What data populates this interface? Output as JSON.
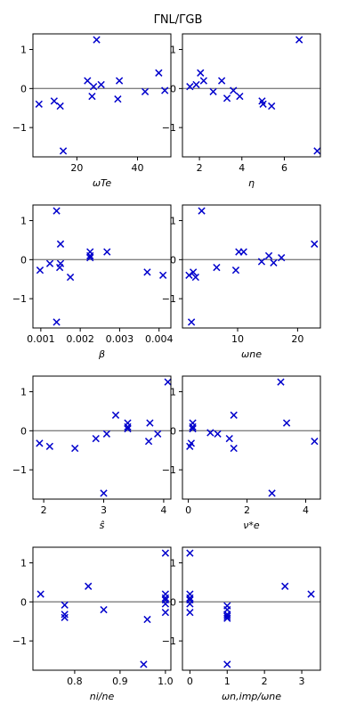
{
  "figure": {
    "title": "ΓNL/ΓGB"
  },
  "colors": {
    "marker": "#0000cc",
    "zero_line": "#808080",
    "axes": "#000000"
  },
  "chart_data": [
    {
      "type": "scatter",
      "xlabel": "ωTe",
      "xlim": [
        5.5,
        51
      ],
      "ylim": [
        -1.75,
        1.4
      ],
      "xticks": [
        20,
        40
      ],
      "xtick_labels": [
        "20",
        "40"
      ],
      "yticks": [
        -1,
        0,
        1
      ],
      "ytick_labels": [
        "−1",
        "0",
        "1"
      ],
      "zero_line": true,
      "points": [
        {
          "x": 7.5,
          "y": -0.4
        },
        {
          "x": 12.5,
          "y": -0.32
        },
        {
          "x": 14.5,
          "y": -0.45
        },
        {
          "x": 15.5,
          "y": -1.6
        },
        {
          "x": 23.5,
          "y": 0.2
        },
        {
          "x": 25.0,
          "y": -0.2
        },
        {
          "x": 25.5,
          "y": 0.05
        },
        {
          "x": 26.5,
          "y": 1.25
        },
        {
          "x": 28.0,
          "y": 0.1
        },
        {
          "x": 33.5,
          "y": -0.27
        },
        {
          "x": 34.0,
          "y": 0.2
        },
        {
          "x": 42.5,
          "y": -0.08
        },
        {
          "x": 47.0,
          "y": 0.4
        },
        {
          "x": 49.0,
          "y": -0.05
        }
      ]
    },
    {
      "type": "scatter",
      "xlabel": "η",
      "xlim": [
        1.2,
        7.7
      ],
      "ylim": [
        -1.75,
        1.4
      ],
      "xticks": [
        2,
        4,
        6
      ],
      "xtick_labels": [
        "2",
        "4",
        "6"
      ],
      "yticks": [
        -1,
        0,
        1
      ],
      "ytick_labels": [
        "−1",
        "0",
        "1"
      ],
      "zero_line": true,
      "points": [
        {
          "x": 1.55,
          "y": 0.05
        },
        {
          "x": 1.85,
          "y": 0.1
        },
        {
          "x": 2.05,
          "y": 0.4
        },
        {
          "x": 2.2,
          "y": 0.2
        },
        {
          "x": 2.65,
          "y": -0.08
        },
        {
          "x": 3.05,
          "y": 0.2
        },
        {
          "x": 3.3,
          "y": -0.25
        },
        {
          "x": 3.6,
          "y": -0.05
        },
        {
          "x": 3.9,
          "y": -0.2
        },
        {
          "x": 4.95,
          "y": -0.32
        },
        {
          "x": 5.0,
          "y": -0.4
        },
        {
          "x": 5.4,
          "y": -0.45
        },
        {
          "x": 6.7,
          "y": 1.25
        },
        {
          "x": 7.55,
          "y": -1.6
        }
      ]
    },
    {
      "type": "scatter",
      "xlabel": "β",
      "xlim": [
        0.0008,
        0.0043
      ],
      "ylim": [
        -1.75,
        1.4
      ],
      "xticks": [
        0.001,
        0.002,
        0.003,
        0.004
      ],
      "xtick_labels": [
        "0.001",
        "0.002",
        "0.003",
        "0.004"
      ],
      "yticks": [
        -1,
        0,
        1
      ],
      "ytick_labels": [
        "−1",
        "0",
        "1"
      ],
      "zero_line": true,
      "points": [
        {
          "x": 0.00098,
          "y": -0.27
        },
        {
          "x": 0.00123,
          "y": -0.1
        },
        {
          "x": 0.0014,
          "y": 1.25
        },
        {
          "x": 0.0014,
          "y": -1.6
        },
        {
          "x": 0.00148,
          "y": -0.2
        },
        {
          "x": 0.0015,
          "y": -0.1
        },
        {
          "x": 0.0015,
          "y": 0.4
        },
        {
          "x": 0.00175,
          "y": -0.45
        },
        {
          "x": 0.00225,
          "y": 0.2
        },
        {
          "x": 0.00225,
          "y": 0.05
        },
        {
          "x": 0.00225,
          "y": 0.1
        },
        {
          "x": 0.00268,
          "y": 0.2
        },
        {
          "x": 0.0037,
          "y": -0.32
        },
        {
          "x": 0.0041,
          "y": -0.4
        }
      ]
    },
    {
      "type": "scatter",
      "xlabel": "ωne",
      "xlim": [
        0.8,
        23.8
      ],
      "ylim": [
        -1.75,
        1.4
      ],
      "xticks": [
        10,
        20
      ],
      "xtick_labels": [
        "10",
        "20"
      ],
      "yticks": [
        -1,
        0,
        1
      ],
      "ytick_labels": [
        "−1",
        "0",
        "1"
      ],
      "zero_line": true,
      "points": [
        {
          "x": 1.9,
          "y": -0.4
        },
        {
          "x": 2.3,
          "y": -1.6
        },
        {
          "x": 2.6,
          "y": -0.32
        },
        {
          "x": 3.0,
          "y": -0.45
        },
        {
          "x": 4.0,
          "y": 1.25
        },
        {
          "x": 6.5,
          "y": -0.2
        },
        {
          "x": 9.7,
          "y": -0.27
        },
        {
          "x": 10.2,
          "y": 0.2
        },
        {
          "x": 11.0,
          "y": 0.2
        },
        {
          "x": 14.0,
          "y": -0.05
        },
        {
          "x": 15.2,
          "y": 0.1
        },
        {
          "x": 16.0,
          "y": -0.08
        },
        {
          "x": 17.3,
          "y": 0.05
        },
        {
          "x": 22.8,
          "y": 0.4
        }
      ]
    },
    {
      "type": "scatter",
      "xlabel": "ŝ",
      "xlim": [
        1.82,
        4.12
      ],
      "ylim": [
        -1.75,
        1.4
      ],
      "xticks": [
        2,
        3,
        4
      ],
      "xtick_labels": [
        "2",
        "3",
        "4"
      ],
      "yticks": [
        -1,
        0,
        1
      ],
      "ytick_labels": [
        "−1",
        "0",
        "1"
      ],
      "zero_line": true,
      "points": [
        {
          "x": 1.93,
          "y": -0.32
        },
        {
          "x": 2.1,
          "y": -0.4
        },
        {
          "x": 2.52,
          "y": -0.45
        },
        {
          "x": 2.87,
          "y": -0.2
        },
        {
          "x": 3.0,
          "y": -1.6
        },
        {
          "x": 3.05,
          "y": -0.08
        },
        {
          "x": 3.2,
          "y": 0.4
        },
        {
          "x": 3.4,
          "y": 0.2
        },
        {
          "x": 3.4,
          "y": 0.05
        },
        {
          "x": 3.4,
          "y": 0.1
        },
        {
          "x": 3.75,
          "y": -0.27
        },
        {
          "x": 3.77,
          "y": 0.2
        },
        {
          "x": 3.9,
          "y": -0.08
        },
        {
          "x": 4.07,
          "y": 1.25
        }
      ]
    },
    {
      "type": "scatter",
      "xlabel": "ν*e",
      "xlim": [
        -0.2,
        4.5
      ],
      "ylim": [
        -1.75,
        1.4
      ],
      "xticks": [
        0,
        2,
        4
      ],
      "xtick_labels": [
        "0",
        "2",
        "4"
      ],
      "yticks": [
        -1,
        0,
        1
      ],
      "ytick_labels": [
        "−1",
        "0",
        "1"
      ],
      "zero_line": true,
      "points": [
        {
          "x": 0.05,
          "y": -0.4
        },
        {
          "x": 0.1,
          "y": -0.32
        },
        {
          "x": 0.15,
          "y": 0.2
        },
        {
          "x": 0.15,
          "y": 0.05
        },
        {
          "x": 0.15,
          "y": 0.1
        },
        {
          "x": 0.75,
          "y": -0.05
        },
        {
          "x": 1.0,
          "y": -0.08
        },
        {
          "x": 1.4,
          "y": -0.2
        },
        {
          "x": 1.55,
          "y": 0.4
        },
        {
          "x": 1.55,
          "y": -0.45
        },
        {
          "x": 2.85,
          "y": -1.6
        },
        {
          "x": 3.15,
          "y": 1.25
        },
        {
          "x": 3.35,
          "y": 0.2
        },
        {
          "x": 4.3,
          "y": -0.27
        }
      ]
    },
    {
      "type": "scatter",
      "xlabel": "ni/ne",
      "xlim": [
        0.708,
        1.012
      ],
      "ylim": [
        -1.75,
        1.4
      ],
      "xticks": [
        0.8,
        0.9,
        1.0
      ],
      "xtick_labels": [
        "0.8",
        "0.9",
        "1.0"
      ],
      "yticks": [
        -1,
        0,
        1
      ],
      "ytick_labels": [
        "−1",
        "0",
        "1"
      ],
      "zero_line": true,
      "points": [
        {
          "x": 0.725,
          "y": 0.2
        },
        {
          "x": 0.778,
          "y": -0.08
        },
        {
          "x": 0.778,
          "y": -0.32
        },
        {
          "x": 0.778,
          "y": -0.4
        },
        {
          "x": 0.83,
          "y": 0.4
        },
        {
          "x": 0.864,
          "y": -0.2
        },
        {
          "x": 0.952,
          "y": -1.6
        },
        {
          "x": 0.96,
          "y": -0.45
        },
        {
          "x": 1.0,
          "y": 1.25
        },
        {
          "x": 1.0,
          "y": 0.2
        },
        {
          "x": 1.0,
          "y": 0.1
        },
        {
          "x": 1.0,
          "y": 0.05
        },
        {
          "x": 1.0,
          "y": -0.05
        },
        {
          "x": 1.0,
          "y": -0.27
        }
      ]
    },
    {
      "type": "scatter",
      "xlabel": "ωn,imp/ωne",
      "xlim": [
        -0.2,
        3.5
      ],
      "ylim": [
        -1.75,
        1.4
      ],
      "xticks": [
        0,
        1,
        2,
        3
      ],
      "xtick_labels": [
        "0",
        "1",
        "2",
        "3"
      ],
      "yticks": [
        -1,
        0,
        1
      ],
      "ytick_labels": [
        "−1",
        "0",
        "1"
      ],
      "zero_line": true,
      "points": [
        {
          "x": 0.0,
          "y": 1.25
        },
        {
          "x": 0.0,
          "y": 0.2
        },
        {
          "x": 0.0,
          "y": 0.1
        },
        {
          "x": 0.0,
          "y": 0.05
        },
        {
          "x": 0.0,
          "y": -0.05
        },
        {
          "x": 0.0,
          "y": -0.27
        },
        {
          "x": 1.0,
          "y": -0.1
        },
        {
          "x": 1.0,
          "y": -0.2
        },
        {
          "x": 1.0,
          "y": -0.32
        },
        {
          "x": 1.0,
          "y": -0.37
        },
        {
          "x": 1.0,
          "y": -0.42
        },
        {
          "x": 1.0,
          "y": -1.6
        },
        {
          "x": 2.55,
          "y": 0.4
        },
        {
          "x": 3.25,
          "y": 0.2
        }
      ]
    }
  ]
}
